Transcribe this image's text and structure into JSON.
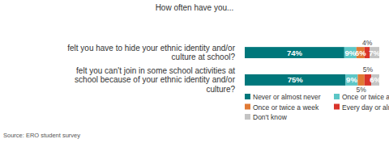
{
  "chart_data": {
    "type": "bar",
    "orientation": "horizontal",
    "stacked": true,
    "data_labels": true,
    "tick_labels": false,
    "grid": false,
    "title": "How often have you...",
    "source": "Source: ERO student survey",
    "categories": [
      "felt you have to hide your ethnic identity and/or culture at school?",
      "felt you can't join in some school activities at school because of your ethnic identity and/or culture?"
    ],
    "xlim": [
      0,
      100
    ],
    "series": [
      {
        "name": "Never or almost never",
        "color": "#00777b",
        "values": [
          74,
          75
        ],
        "value_labels": [
          "74%",
          "75%"
        ]
      },
      {
        "name": "Once or twice a month",
        "color": "#5cc6c6",
        "values": [
          9,
          9
        ],
        "value_labels": [
          "9%",
          "9%"
        ]
      },
      {
        "name": "Once or twice a week",
        "color": "#e07a35",
        "values": [
          6,
          5
        ],
        "value_labels": [
          "6%",
          "5%"
        ]
      },
      {
        "name": "Every day or almost every day",
        "color": "#d9342b",
        "values": [
          4,
          5
        ],
        "value_labels": [
          "4%",
          "5%"
        ]
      },
      {
        "name": "Don't know",
        "color": "#c4c4c4",
        "values": [
          7,
          6
        ],
        "value_labels": [
          "7%",
          "6%"
        ]
      }
    ]
  }
}
